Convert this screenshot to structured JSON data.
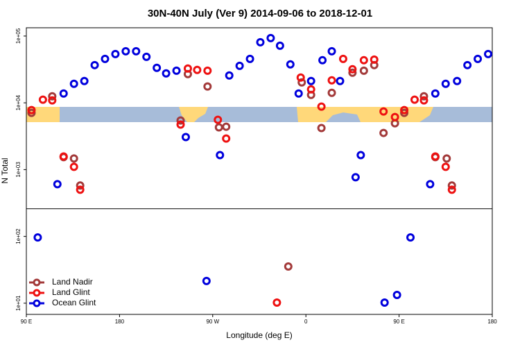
{
  "chart_data": {
    "type": "scatter",
    "title": "30N-40N July (Ver 9)   2014-09-06 to 2018-12-01",
    "xlabel": "Longitude (deg E)",
    "ylabel": "N Total",
    "xlim": [
      90,
      540
    ],
    "xticks": [
      {
        "value": 90,
        "label": "90 E"
      },
      180,
      {
        "value": 270,
        "label": "90 W"
      },
      {
        "value": 360,
        "label": "0"
      },
      {
        "value": 450,
        "label": "90 E"
      },
      {
        "value": 540,
        "label": "180"
      }
    ],
    "ylim": [
      6.8,
      133000
    ],
    "yscale": "log",
    "yticks": [
      {
        "value": 10,
        "label": "1e+01"
      },
      {
        "value": 100,
        "label": "1e+02"
      },
      {
        "value": 1000,
        "label": "1e+03"
      },
      {
        "value": 10000,
        "label": "1e+04"
      },
      {
        "value": 100000,
        "label": "1e+05"
      }
    ],
    "hline": 260,
    "legend": "bottom-left",
    "series": [
      {
        "name": "Land Nadir",
        "color": "#a33a3a",
        "x": [
          95,
          115,
          126,
          136,
          142,
          246,
          239,
          265,
          276,
          283,
          356,
          365,
          375,
          385,
          405,
          416,
          426,
          435,
          446,
          455,
          474,
          485,
          496,
          501,
          343
        ],
        "values": [
          7080,
          12540,
          1537,
          1467,
          578,
          26900,
          5440,
          17540,
          4290,
          4390,
          20200,
          13150,
          4190,
          14130,
          28250,
          30300,
          36700,
          3540,
          4940,
          7080,
          12540,
          1537,
          1467,
          578,
          35.4
        ]
      },
      {
        "name": "Land Glint",
        "color": "#ee1111",
        "x": [
          95,
          106,
          115,
          126,
          136,
          142,
          239,
          246,
          255,
          265,
          275,
          283,
          332,
          355,
          365,
          375,
          385,
          396,
          405,
          416,
          426,
          435,
          446,
          455,
          465,
          474,
          485,
          495,
          501
        ],
        "values": [
          7780,
          11140,
          10870,
          1574,
          1100,
          500,
          4720,
          32600,
          31050,
          30300,
          5570,
          2920,
          10.2,
          23900,
          15900,
          8770,
          21700,
          45500,
          31800,
          43400,
          44400,
          7420,
          6130,
          7780,
          11140,
          10870,
          1574,
          1100,
          500
        ]
      },
      {
        "name": "Ocean Glint",
        "color": "#0000dd",
        "x": [
          101,
          120,
          126,
          136,
          146,
          156,
          166,
          176,
          186,
          196,
          206,
          216,
          225,
          235,
          244,
          264,
          277,
          286,
          296,
          306,
          316,
          326,
          335,
          345,
          353,
          365,
          376,
          385,
          393,
          408,
          413,
          436,
          448,
          461,
          480,
          485,
          495,
          506,
          516,
          526,
          536
        ],
        "values": [
          96.4,
          606,
          13800,
          19280,
          21200,
          36700,
          45500,
          53800,
          59200,
          59200,
          48900,
          33400,
          27600,
          30300,
          3070,
          21.5,
          1650,
          25700,
          35800,
          45500,
          80700,
          93100,
          71600,
          37600,
          13800,
          21200,
          43400,
          59200,
          21200,
          769,
          1650,
          10.2,
          13.3,
          96.4,
          606,
          13800,
          19280,
          21200,
          36700,
          45500,
          53800
        ]
      }
    ]
  }
}
